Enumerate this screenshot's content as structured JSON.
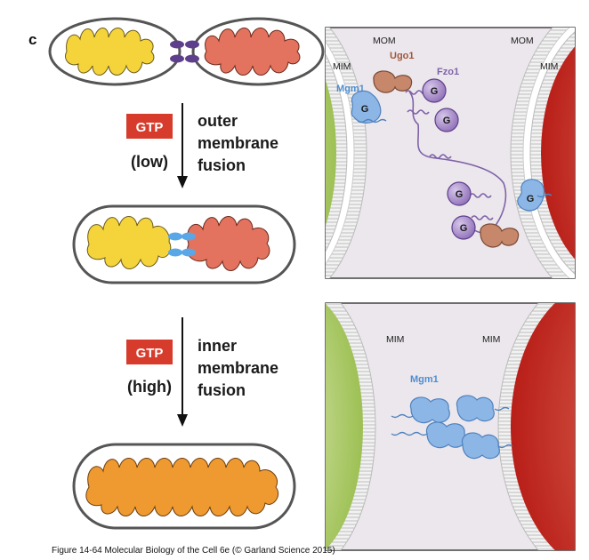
{
  "panel_letter": "c",
  "steps": [
    {
      "gtp_label": "GTP",
      "gtp_level": "(low)",
      "line1": "outer",
      "line2": "membrane",
      "line3": "fusion"
    },
    {
      "gtp_label": "GTP",
      "gtp_level": "(high)",
      "line1": "inner",
      "line2": "membrane",
      "line3": "fusion"
    }
  ],
  "top_panel": {
    "mom_left": "MOM",
    "mom_right": "MOM",
    "mim_left": "MIM",
    "mim_right": "MIM",
    "ugo1": "Ugo1",
    "fzo1": "Fzo1",
    "mgm1": "Mgm1",
    "g": "G"
  },
  "bottom_panel": {
    "mim_left": "MIM",
    "mim_right": "MIM",
    "mgm1": "Mgm1"
  },
  "caption": "Figure 14-64  Molecular Biology of the Cell 6e (© Garland Science 2015)",
  "colors": {
    "yellow": "#f4d43a",
    "salmon": "#e3735e",
    "orange": "#ef9a30",
    "gtp_red": "#d63b2b",
    "blue": "#8cb6e6",
    "purple": "#a98fc6",
    "brown": "#c6876b",
    "green": "#a9c95a",
    "red": "#c3281f"
  }
}
